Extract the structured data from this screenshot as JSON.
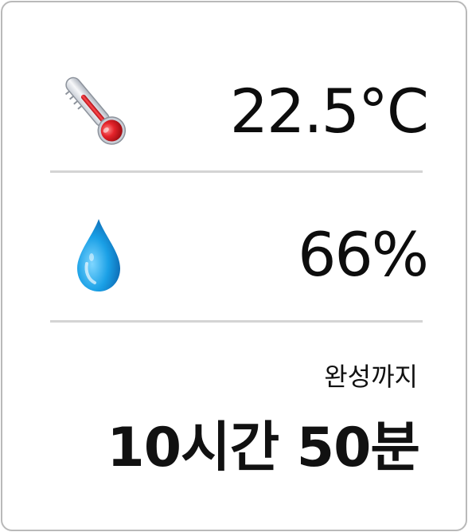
{
  "readings": {
    "temperature": {
      "icon": "thermometer-icon",
      "value": "22.5°C"
    },
    "humidity": {
      "icon": "water-drop-icon",
      "value": "66%"
    }
  },
  "eta": {
    "label": "완성까지",
    "value": "10시간 50분"
  },
  "colors": {
    "thermometer_red": "#d8141b",
    "drop_blue": "#1aa0e6",
    "divider": "#d4d4d4",
    "border": "#b9b9b9",
    "text": "#111111"
  }
}
